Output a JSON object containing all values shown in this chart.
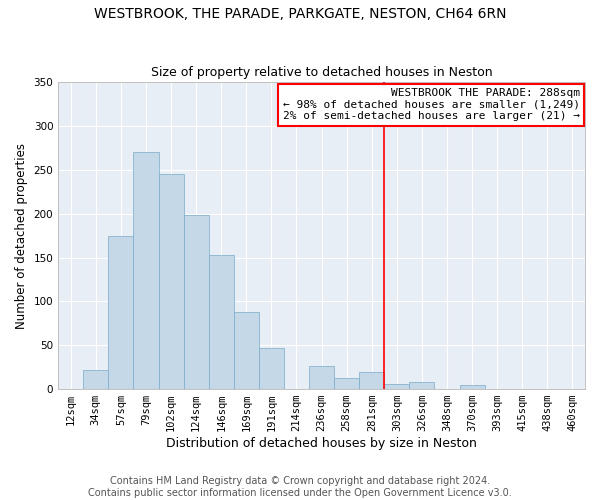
{
  "title": "WESTBROOK, THE PARADE, PARKGATE, NESTON, CH64 6RN",
  "subtitle": "Size of property relative to detached houses in Neston",
  "xlabel": "Distribution of detached houses by size in Neston",
  "ylabel": "Number of detached properties",
  "bar_labels": [
    "12sqm",
    "34sqm",
    "57sqm",
    "79sqm",
    "102sqm",
    "124sqm",
    "146sqm",
    "169sqm",
    "191sqm",
    "214sqm",
    "236sqm",
    "258sqm",
    "281sqm",
    "303sqm",
    "326sqm",
    "348sqm",
    "370sqm",
    "393sqm",
    "415sqm",
    "438sqm",
    "460sqm"
  ],
  "bar_heights": [
    0,
    22,
    175,
    270,
    245,
    198,
    153,
    88,
    47,
    0,
    26,
    13,
    20,
    6,
    8,
    0,
    5,
    0,
    0,
    0,
    0
  ],
  "bar_color": "#c5d8e8",
  "bar_edge_color": "#7aaac8",
  "vline_x": 12.5,
  "vline_color": "#ff0000",
  "annotation_title": "WESTBROOK THE PARADE: 288sqm",
  "annotation_line1": "← 98% of detached houses are smaller (1,249)",
  "annotation_line2": "2% of semi-detached houses are larger (21) →",
  "annotation_box_color": "#ffffff",
  "annotation_box_edge": "#ff0000",
  "ylim": [
    0,
    350
  ],
  "yticks": [
    0,
    50,
    100,
    150,
    200,
    250,
    300,
    350
  ],
  "footer1": "Contains HM Land Registry data © Crown copyright and database right 2024.",
  "footer2": "Contains public sector information licensed under the Open Government Licence v3.0.",
  "title_fontsize": 10,
  "subtitle_fontsize": 9,
  "xlabel_fontsize": 9,
  "ylabel_fontsize": 8.5,
  "tick_fontsize": 7.5,
  "footer_fontsize": 7,
  "annotation_fontsize": 8,
  "ax_bg_color": "#e8eef5",
  "grid_color": "#ffffff"
}
